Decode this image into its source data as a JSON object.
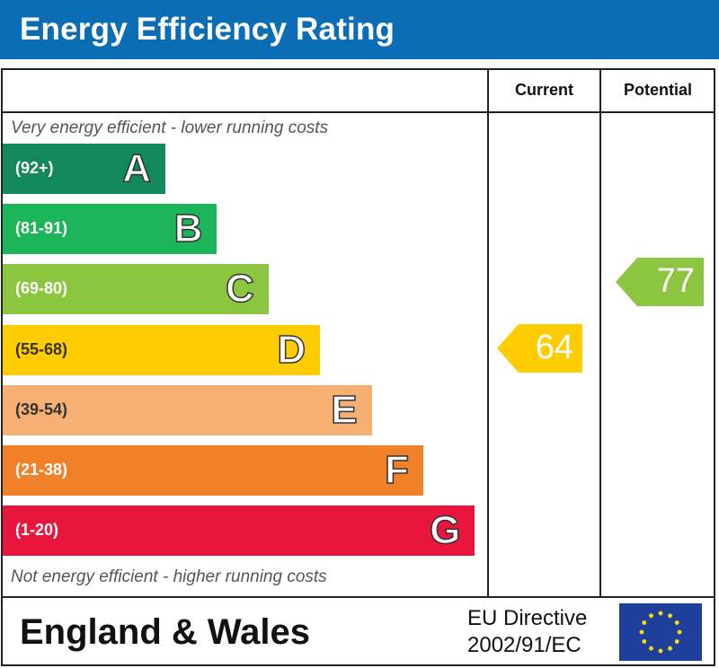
{
  "header": {
    "title": "Energy Efficiency Rating"
  },
  "columns": {
    "current": "Current",
    "potential": "Potential"
  },
  "notes": {
    "top": "Very energy efficient - lower running costs",
    "bottom": "Not energy efficient - higher running costs"
  },
  "footer": {
    "region": "England & Wales",
    "directive_line1": "EU Directive",
    "directive_line2": "2002/91/EC",
    "flag_icon": "eu-flag-icon"
  },
  "chart_data": {
    "type": "bar",
    "title": "Energy Efficiency Rating",
    "categories": [
      "A",
      "B",
      "C",
      "D",
      "E",
      "F",
      "G"
    ],
    "bands": [
      {
        "letter": "A",
        "range": "(92+)",
        "min": 92,
        "max": 100,
        "color": "#13885a"
      },
      {
        "letter": "B",
        "range": "(81-91)",
        "min": 81,
        "max": 91,
        "color": "#1db55a"
      },
      {
        "letter": "C",
        "range": "(69-80)",
        "min": 69,
        "max": 80,
        "color": "#8cc540"
      },
      {
        "letter": "D",
        "range": "(55-68)",
        "min": 55,
        "max": 68,
        "color": "#ffcc00"
      },
      {
        "letter": "E",
        "range": "(39-54)",
        "min": 39,
        "max": 54,
        "color": "#f7b074"
      },
      {
        "letter": "F",
        "range": "(21-38)",
        "min": 21,
        "max": 38,
        "color": "#f08128"
      },
      {
        "letter": "G",
        "range": "(1-20)",
        "min": 1,
        "max": 20,
        "color": "#e8163c"
      }
    ],
    "series": [
      {
        "name": "Current",
        "value": 64,
        "band": "D",
        "color": "#ffcc00"
      },
      {
        "name": "Potential",
        "value": 77,
        "band": "C",
        "color": "#8cc540"
      }
    ]
  }
}
